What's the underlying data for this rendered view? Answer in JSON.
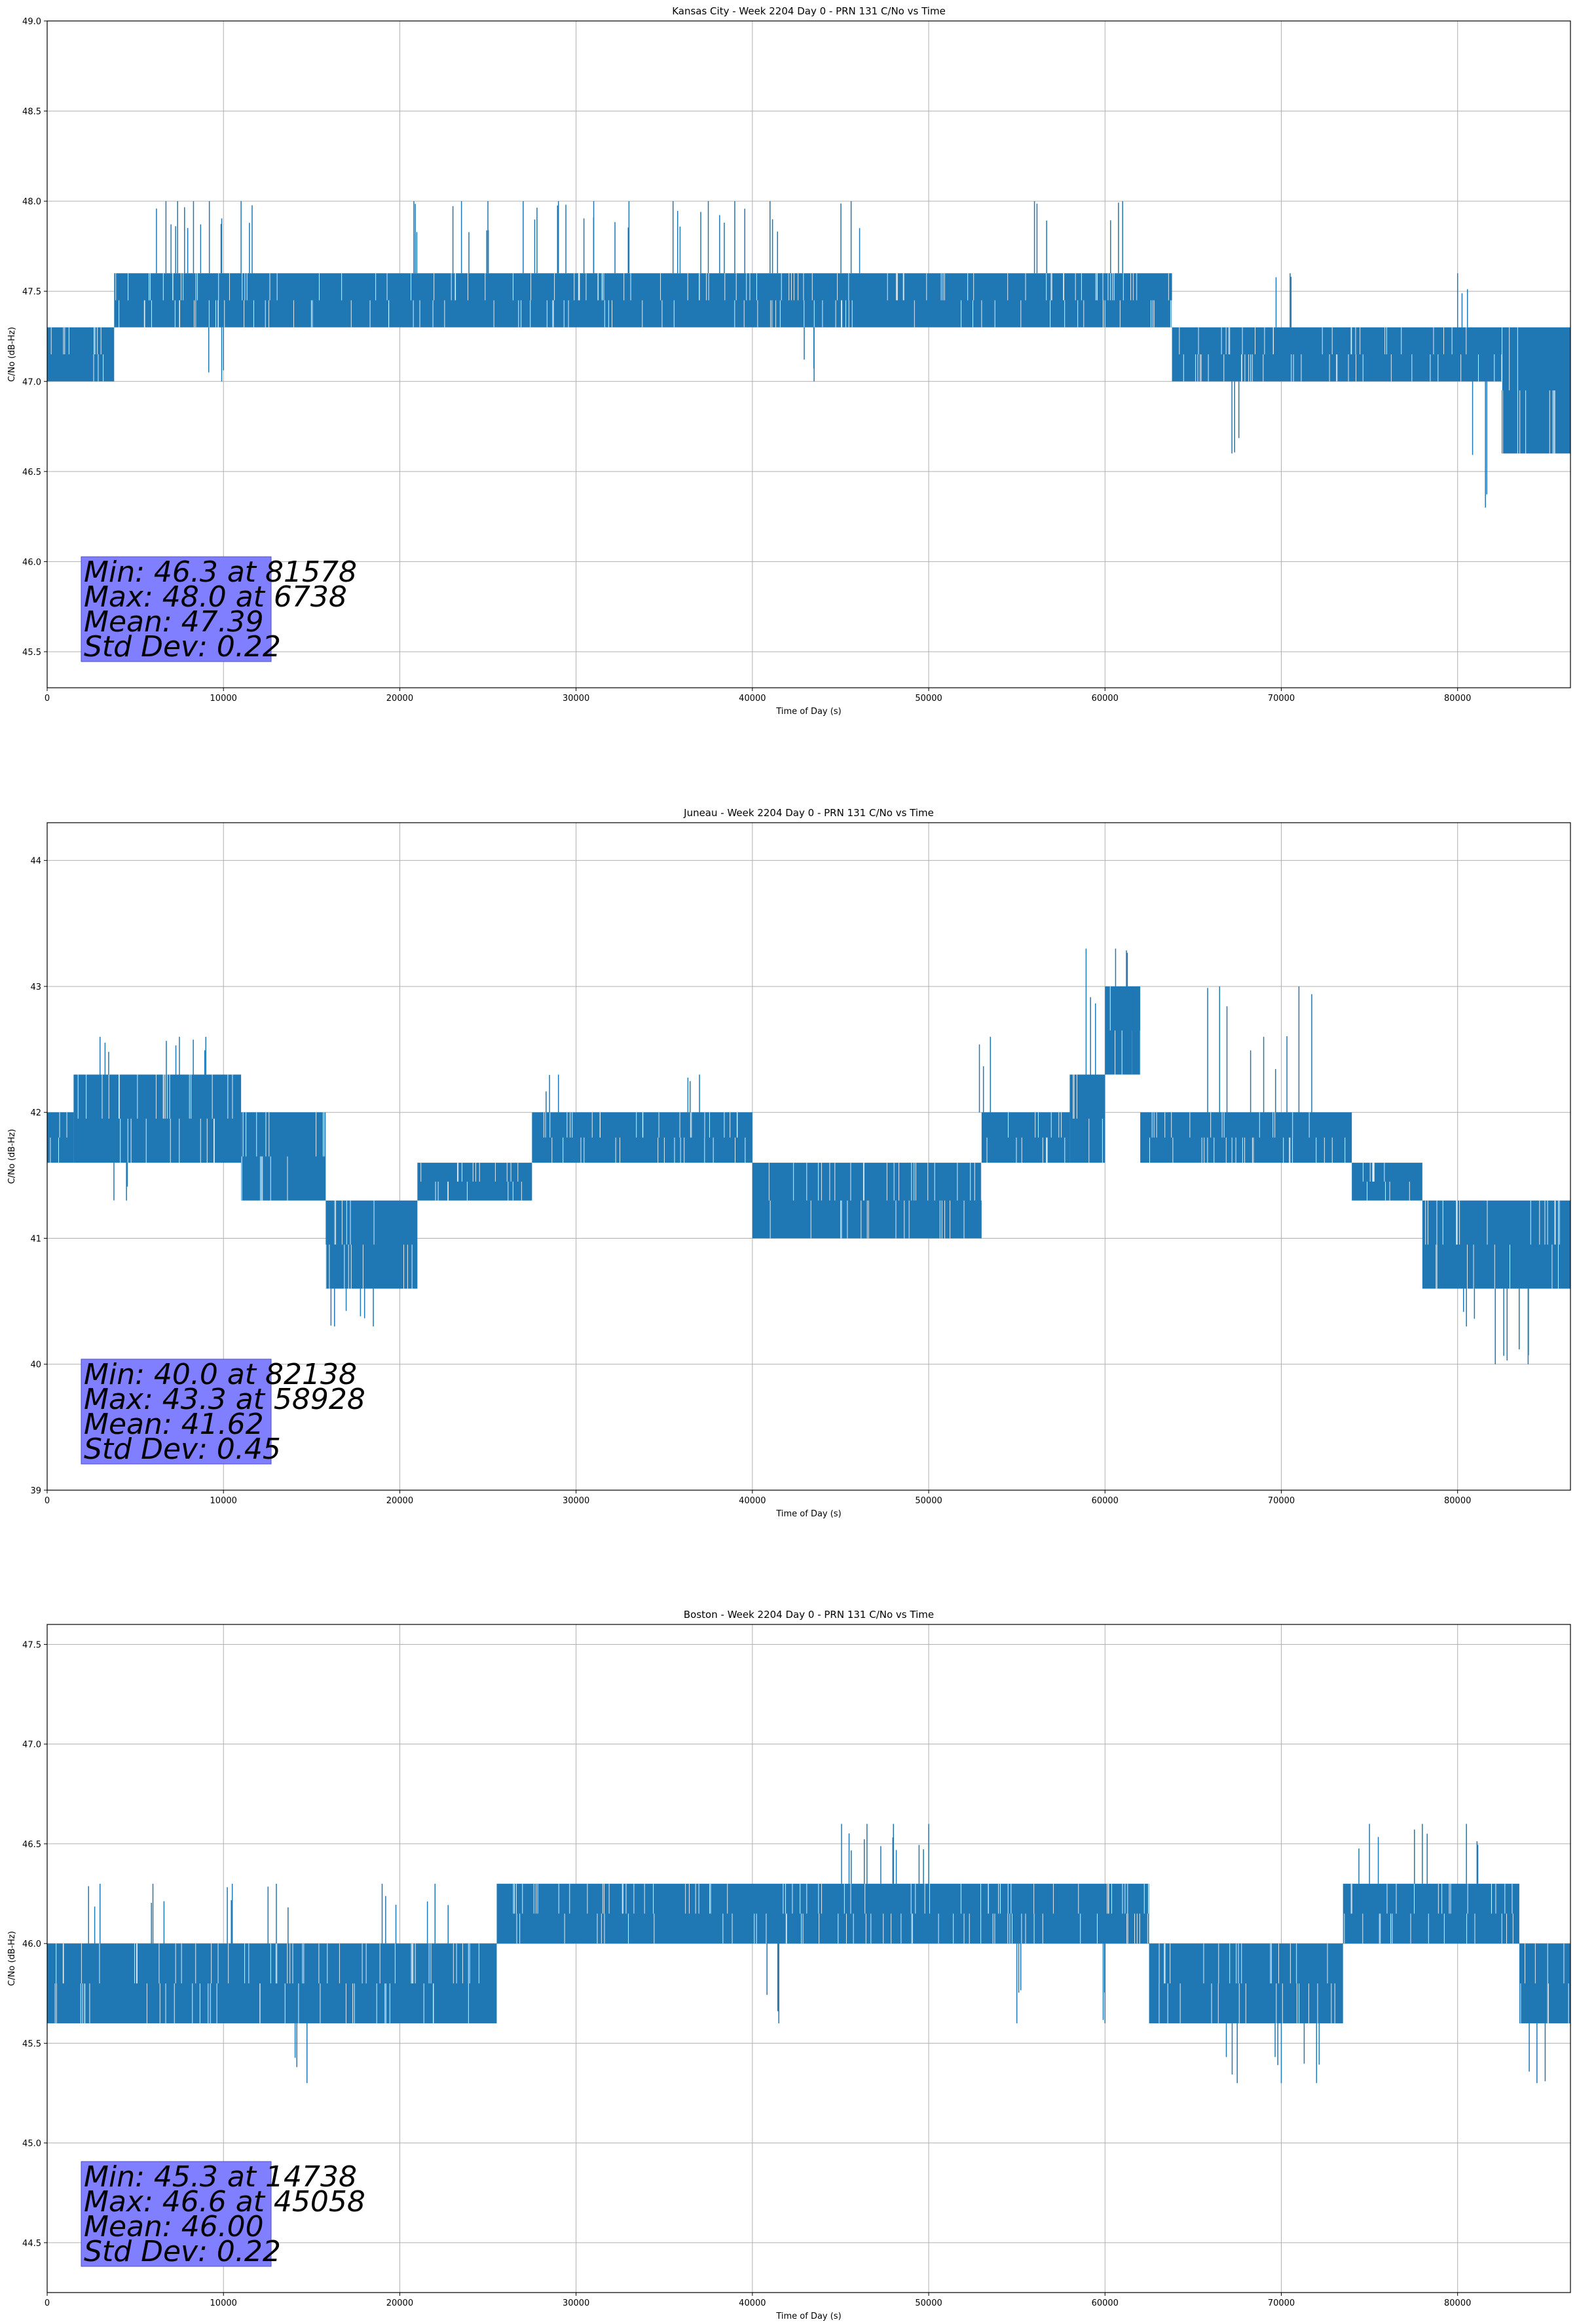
{
  "chart_data": [
    {
      "type": "line",
      "title": "Kansas City - Week 2204 Day 0 - PRN 131 C/No vs Time",
      "xlabel": "Time of Day (s)",
      "ylabel": "C/No (dB-Hz)",
      "xlim": [
        0,
        86400
      ],
      "ylim": [
        45.3,
        49.0
      ],
      "xticks": [
        0,
        10000,
        20000,
        30000,
        40000,
        50000,
        60000,
        70000,
        80000
      ],
      "yticks": [
        "45.5",
        "46.0",
        "46.5",
        "47.0",
        "47.5",
        "48.0",
        "48.5",
        "49.0"
      ],
      "grid": true,
      "series_color": "#1f77b4",
      "bands": [
        {
          "x": [
            0,
            3800
          ],
          "lo": 47.0,
          "hi": 47.3
        },
        {
          "x": [
            3800,
            63800
          ],
          "lo": 47.3,
          "hi": 47.6
        },
        {
          "x": [
            63800,
            82500
          ],
          "lo": 47.0,
          "hi": 47.3
        },
        {
          "x": [
            82500,
            86400
          ],
          "lo": 46.6,
          "hi": 47.3
        }
      ],
      "spikes": [
        {
          "x": 6738,
          "y": 48.0
        },
        {
          "x": 7400,
          "y": 48.0
        },
        {
          "x": 8300,
          "y": 48.0
        },
        {
          "x": 9200,
          "y": 48.0
        },
        {
          "x": 11000,
          "y": 48.0
        },
        {
          "x": 20800,
          "y": 48.0
        },
        {
          "x": 23500,
          "y": 48.0
        },
        {
          "x": 25000,
          "y": 48.0
        },
        {
          "x": 27000,
          "y": 48.0
        },
        {
          "x": 29000,
          "y": 48.0
        },
        {
          "x": 31000,
          "y": 48.0
        },
        {
          "x": 33000,
          "y": 48.0
        },
        {
          "x": 35500,
          "y": 48.0
        },
        {
          "x": 37500,
          "y": 48.0
        },
        {
          "x": 39000,
          "y": 48.0
        },
        {
          "x": 41000,
          "y": 48.0
        },
        {
          "x": 45600,
          "y": 48.0
        },
        {
          "x": 56000,
          "y": 48.0
        },
        {
          "x": 61000,
          "y": 48.0
        },
        {
          "x": 67200,
          "y": 46.6
        },
        {
          "x": 81578,
          "y": 46.3
        },
        {
          "x": 9900,
          "y": 47.0
        },
        {
          "x": 43500,
          "y": 47.0
        },
        {
          "x": 70500,
          "y": 47.6
        },
        {
          "x": 80000,
          "y": 47.6
        }
      ],
      "stats": {
        "min_label": "Min: 46.3 at 81578",
        "max_label": "Max: 48.0 at 6738",
        "mean_label": "Mean: 47.39",
        "std_label": "Std Dev: 0.22"
      }
    },
    {
      "type": "line",
      "title": "Juneau - Week 2204 Day 0 - PRN 131 C/No vs Time",
      "xlabel": "Time of Day (s)",
      "ylabel": "C/No (dB-Hz)",
      "xlim": [
        0,
        86400
      ],
      "ylim": [
        39,
        44.3
      ],
      "xticks": [
        0,
        10000,
        20000,
        30000,
        40000,
        50000,
        60000,
        70000,
        80000
      ],
      "yticks": [
        "39",
        "40",
        "41",
        "42",
        "43",
        "44"
      ],
      "grid": true,
      "series_color": "#1f77b4",
      "bands": [
        {
          "x": [
            0,
            1500
          ],
          "lo": 41.6,
          "hi": 42.0
        },
        {
          "x": [
            1500,
            11000
          ],
          "lo": 41.6,
          "hi": 42.3
        },
        {
          "x": [
            11000,
            15800
          ],
          "lo": 41.3,
          "hi": 42.0
        },
        {
          "x": [
            15800,
            21000
          ],
          "lo": 40.6,
          "hi": 41.3
        },
        {
          "x": [
            21000,
            27500
          ],
          "lo": 41.3,
          "hi": 41.6
        },
        {
          "x": [
            27500,
            40000
          ],
          "lo": 41.6,
          "hi": 42.0
        },
        {
          "x": [
            40000,
            53000
          ],
          "lo": 41.0,
          "hi": 41.6
        },
        {
          "x": [
            53000,
            58000
          ],
          "lo": 41.6,
          "hi": 42.0
        },
        {
          "x": [
            58000,
            60000
          ],
          "lo": 41.6,
          "hi": 42.3
        },
        {
          "x": [
            60000,
            62000
          ],
          "lo": 42.3,
          "hi": 43.0
        },
        {
          "x": [
            62000,
            74000
          ],
          "lo": 41.6,
          "hi": 42.0
        },
        {
          "x": [
            74000,
            78000
          ],
          "lo": 41.3,
          "hi": 41.6
        },
        {
          "x": [
            78000,
            86400
          ],
          "lo": 40.6,
          "hi": 41.3
        }
      ],
      "spikes": [
        {
          "x": 58928,
          "y": 43.3
        },
        {
          "x": 60600,
          "y": 43.3
        },
        {
          "x": 61500,
          "y": 43.0
        },
        {
          "x": 66500,
          "y": 43.0
        },
        {
          "x": 71000,
          "y": 43.0
        },
        {
          "x": 3000,
          "y": 42.6
        },
        {
          "x": 7500,
          "y": 42.6
        },
        {
          "x": 9000,
          "y": 42.6
        },
        {
          "x": 53500,
          "y": 42.6
        },
        {
          "x": 69000,
          "y": 42.6
        },
        {
          "x": 82138,
          "y": 40.0
        },
        {
          "x": 84000,
          "y": 40.0
        },
        {
          "x": 16300,
          "y": 40.3
        },
        {
          "x": 18500,
          "y": 40.3
        },
        {
          "x": 80500,
          "y": 40.3
        },
        {
          "x": 4500,
          "y": 41.3
        },
        {
          "x": 29000,
          "y": 42.3
        },
        {
          "x": 37000,
          "y": 42.3
        }
      ],
      "stats": {
        "min_label": "Min: 40.0 at 82138",
        "max_label": "Max: 43.3 at 58928",
        "mean_label": "Mean: 41.62",
        "std_label": "Std Dev: 0.45"
      }
    },
    {
      "type": "line",
      "title": "Boston - Week 2204 Day 0 - PRN 131 C/No vs Time",
      "xlabel": "Time of Day (s)",
      "ylabel": "C/No (dB-Hz)",
      "xlim": [
        0,
        86400
      ],
      "ylim": [
        44.25,
        47.6
      ],
      "xticks": [
        0,
        10000,
        20000,
        30000,
        40000,
        50000,
        60000,
        70000,
        80000
      ],
      "yticks": [
        "44.5",
        "45.0",
        "45.5",
        "46.0",
        "46.5",
        "47.0",
        "47.5"
      ],
      "grid": true,
      "series_color": "#1f77b4",
      "bands": [
        {
          "x": [
            0,
            25500
          ],
          "lo": 45.6,
          "hi": 46.0
        },
        {
          "x": [
            25500,
            62500
          ],
          "lo": 46.0,
          "hi": 46.3
        },
        {
          "x": [
            62500,
            73500
          ],
          "lo": 45.6,
          "hi": 46.0
        },
        {
          "x": [
            73500,
            83500
          ],
          "lo": 46.0,
          "hi": 46.3
        },
        {
          "x": [
            83500,
            86400
          ],
          "lo": 45.6,
          "hi": 46.0
        }
      ],
      "spikes": [
        {
          "x": 45058,
          "y": 46.6
        },
        {
          "x": 46500,
          "y": 46.6
        },
        {
          "x": 48000,
          "y": 46.6
        },
        {
          "x": 50000,
          "y": 46.6
        },
        {
          "x": 75000,
          "y": 46.6
        },
        {
          "x": 78000,
          "y": 46.6
        },
        {
          "x": 80500,
          "y": 46.6
        },
        {
          "x": 14738,
          "y": 45.3
        },
        {
          "x": 67500,
          "y": 45.3
        },
        {
          "x": 70000,
          "y": 45.3
        },
        {
          "x": 72000,
          "y": 45.3
        },
        {
          "x": 84500,
          "y": 45.3
        },
        {
          "x": 3000,
          "y": 46.3
        },
        {
          "x": 6000,
          "y": 46.3
        },
        {
          "x": 10500,
          "y": 46.3
        },
        {
          "x": 13000,
          "y": 46.3
        },
        {
          "x": 19000,
          "y": 46.3
        },
        {
          "x": 22000,
          "y": 46.3
        },
        {
          "x": 41500,
          "y": 45.6
        },
        {
          "x": 55000,
          "y": 45.6
        },
        {
          "x": 60000,
          "y": 45.6
        }
      ],
      "stats": {
        "min_label": "Min: 45.3 at 14738",
        "max_label": "Max: 46.6 at 45058",
        "mean_label": "Mean: 46.00",
        "std_label": "Std Dev: 0.22"
      }
    }
  ]
}
